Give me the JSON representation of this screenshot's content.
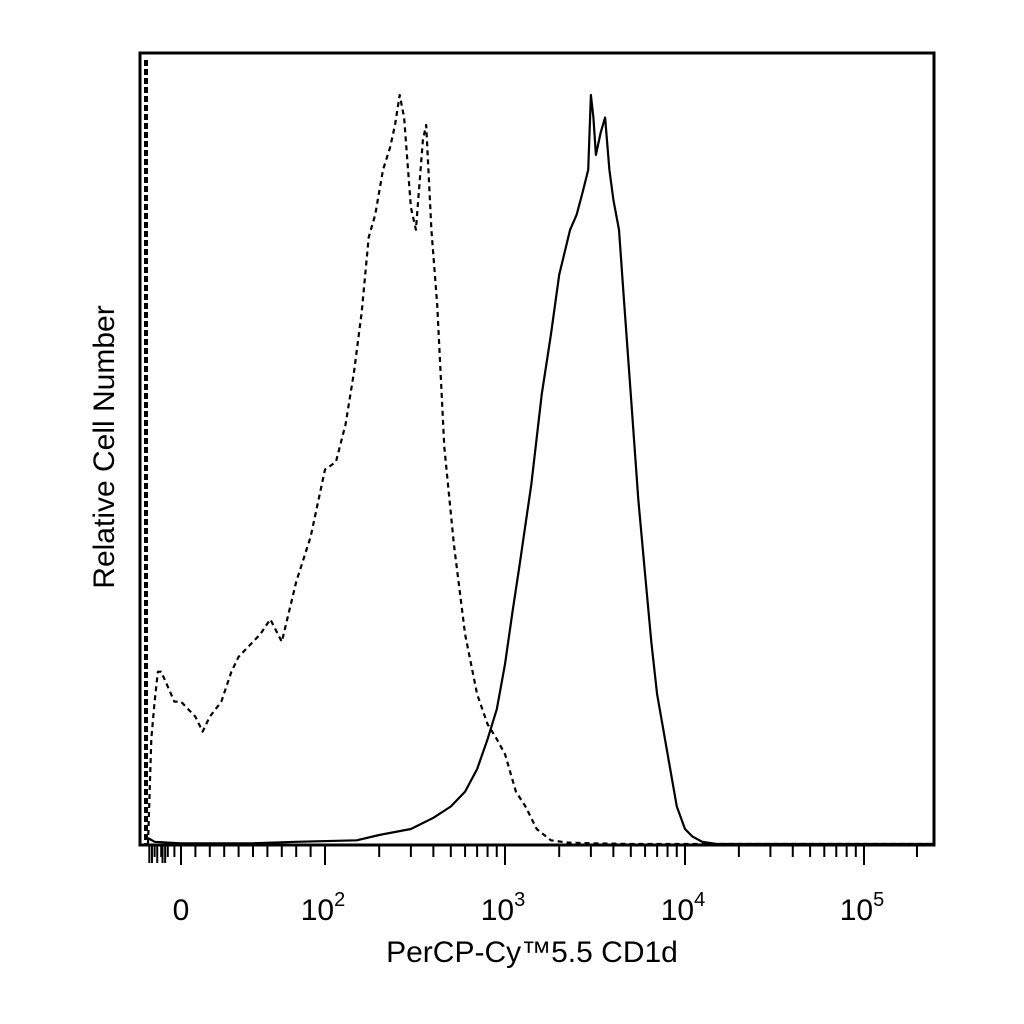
{
  "chart_data": {
    "type": "histogram",
    "title": "",
    "xlabel": "PerCP-Cy™5.5 CD1d",
    "ylabel": "Relative Cell Number",
    "x_scale": "biexponential",
    "xlim": [
      -50,
      250000
    ],
    "ylim": [
      0,
      100
    ],
    "grid": false,
    "legend": "none",
    "x_ticks": [
      {
        "value": 0,
        "base": "0",
        "exp": ""
      },
      {
        "value": 100,
        "base": "10",
        "exp": "2"
      },
      {
        "value": 1000,
        "base": "10",
        "exp": "3"
      },
      {
        "value": 10000,
        "base": "10",
        "exp": "4"
      },
      {
        "value": 100000,
        "base": "10",
        "exp": "5"
      }
    ],
    "series": [
      {
        "style": "dashed",
        "color": "#000000",
        "points": [
          [
            -50,
            0
          ],
          [
            -45,
            14
          ],
          [
            -40,
            19
          ],
          [
            -35,
            23
          ],
          [
            -30,
            23
          ],
          [
            -20,
            21
          ],
          [
            -10,
            19
          ],
          [
            0,
            19
          ],
          [
            5,
            18
          ],
          [
            10,
            17
          ],
          [
            15,
            15
          ],
          [
            20,
            17
          ],
          [
            28,
            19
          ],
          [
            35,
            23
          ],
          [
            40,
            25
          ],
          [
            45,
            26
          ],
          [
            55,
            28
          ],
          [
            62,
            30
          ],
          [
            70,
            27
          ],
          [
            80,
            35
          ],
          [
            90,
            41
          ],
          [
            100,
            50
          ],
          [
            115,
            51
          ],
          [
            130,
            56
          ],
          [
            145,
            63
          ],
          [
            160,
            71
          ],
          [
            175,
            81
          ],
          [
            190,
            84
          ],
          [
            210,
            90
          ],
          [
            230,
            93
          ],
          [
            245,
            96
          ],
          [
            260,
            100
          ],
          [
            275,
            97
          ],
          [
            300,
            85
          ],
          [
            320,
            82
          ],
          [
            350,
            94
          ],
          [
            365,
            96
          ],
          [
            390,
            82
          ],
          [
            420,
            72
          ],
          [
            460,
            53
          ],
          [
            520,
            40
          ],
          [
            600,
            28
          ],
          [
            700,
            20
          ],
          [
            800,
            16
          ],
          [
            900,
            14
          ],
          [
            1000,
            12
          ],
          [
            1150,
            7
          ],
          [
            1300,
            5
          ],
          [
            1500,
            2
          ],
          [
            1800,
            0.5
          ],
          [
            2200,
            0.2
          ],
          [
            3000,
            0.1
          ],
          [
            5000,
            0
          ],
          [
            250000,
            0
          ]
        ]
      },
      {
        "style": "solid",
        "color": "#000000",
        "points": [
          [
            -50,
            0.8
          ],
          [
            -40,
            0.3
          ],
          [
            0,
            0.1
          ],
          [
            50,
            0.1
          ],
          [
            80,
            0.3
          ],
          [
            150,
            0.5
          ],
          [
            200,
            1.2
          ],
          [
            300,
            2
          ],
          [
            400,
            3.5
          ],
          [
            500,
            5
          ],
          [
            600,
            7
          ],
          [
            700,
            10
          ],
          [
            800,
            14
          ],
          [
            900,
            18
          ],
          [
            1000,
            24
          ],
          [
            1100,
            31
          ],
          [
            1200,
            37
          ],
          [
            1400,
            48
          ],
          [
            1600,
            60
          ],
          [
            1800,
            68
          ],
          [
            2000,
            76
          ],
          [
            2300,
            82
          ],
          [
            2500,
            84
          ],
          [
            2700,
            87
          ],
          [
            2900,
            90
          ],
          [
            3000,
            100
          ],
          [
            3100,
            97
          ],
          [
            3200,
            92
          ],
          [
            3400,
            95
          ],
          [
            3600,
            97
          ],
          [
            3800,
            90
          ],
          [
            4000,
            86
          ],
          [
            4300,
            82
          ],
          [
            4600,
            72
          ],
          [
            5000,
            60
          ],
          [
            5500,
            46
          ],
          [
            6000,
            36
          ],
          [
            6500,
            27
          ],
          [
            7000,
            20
          ],
          [
            8000,
            12
          ],
          [
            9000,
            5
          ],
          [
            10000,
            2
          ],
          [
            11000,
            1
          ],
          [
            12500,
            0.3
          ],
          [
            15000,
            0
          ],
          [
            250000,
            0
          ]
        ]
      }
    ]
  }
}
